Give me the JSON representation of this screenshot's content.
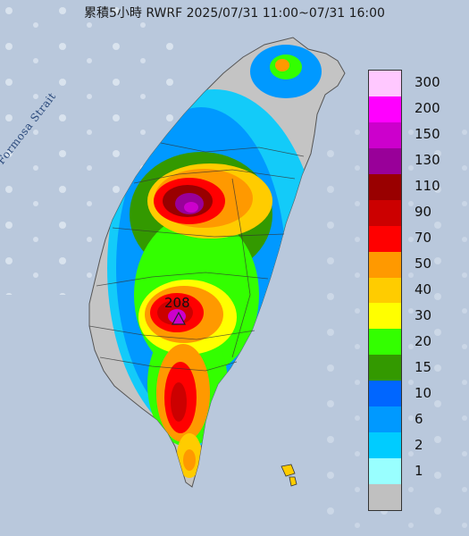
{
  "title": "累積5小時 RWRF 2025/07/31 11:00~07/31 16:00",
  "strait_label": "Formosa Strait",
  "max_value_label": "208",
  "legend": {
    "levels": [
      {
        "label": "300",
        "color": "#ffc8ff"
      },
      {
        "label": "200",
        "color": "#ff00ff"
      },
      {
        "label": "150",
        "color": "#cc00cc"
      },
      {
        "label": "130",
        "color": "#990099"
      },
      {
        "label": "110",
        "color": "#990000"
      },
      {
        "label": "90",
        "color": "#cc0000"
      },
      {
        "label": "70",
        "color": "#ff0000"
      },
      {
        "label": "50",
        "color": "#ff9900"
      },
      {
        "label": "40",
        "color": "#ffcc00"
      },
      {
        "label": "30",
        "color": "#ffff00"
      },
      {
        "label": "20",
        "color": "#33ff00"
      },
      {
        "label": "15",
        "color": "#339900"
      },
      {
        "label": "10",
        "color": "#0066ff"
      },
      {
        "label": "6",
        "color": "#0099ff"
      },
      {
        "label": "2",
        "color": "#00ccff"
      },
      {
        "label": "1",
        "color": "#99ffff"
      },
      {
        "label": "",
        "color": "#c0c0c0"
      }
    ]
  }
}
